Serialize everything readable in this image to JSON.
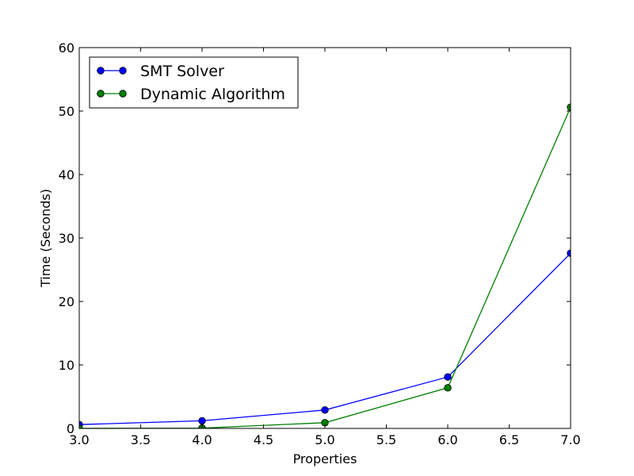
{
  "chart_data": {
    "type": "line",
    "xlabel": "Properties",
    "ylabel": "Time (Seconds)",
    "xlim": [
      3.0,
      7.0
    ],
    "ylim": [
      0,
      60
    ],
    "x_ticks": [
      "3.0",
      "3.5",
      "4.0",
      "4.5",
      "5.0",
      "5.5",
      "6.0",
      "6.5",
      "7.0"
    ],
    "y_ticks": [
      "0",
      "10",
      "20",
      "30",
      "40",
      "50",
      "60"
    ],
    "grid": false,
    "legend_position": "top-left",
    "x": [
      3,
      4,
      5,
      6,
      7
    ],
    "series": [
      {
        "name": "SMT Solver",
        "color": "#0000ff",
        "marker": "circle",
        "values": [
          0.6,
          1.2,
          2.9,
          8.1,
          27.6
        ]
      },
      {
        "name": "Dynamic Algorithm",
        "color": "#008000",
        "marker": "circle",
        "values": [
          0.0,
          0.05,
          0.9,
          6.4,
          50.6
        ]
      }
    ]
  }
}
